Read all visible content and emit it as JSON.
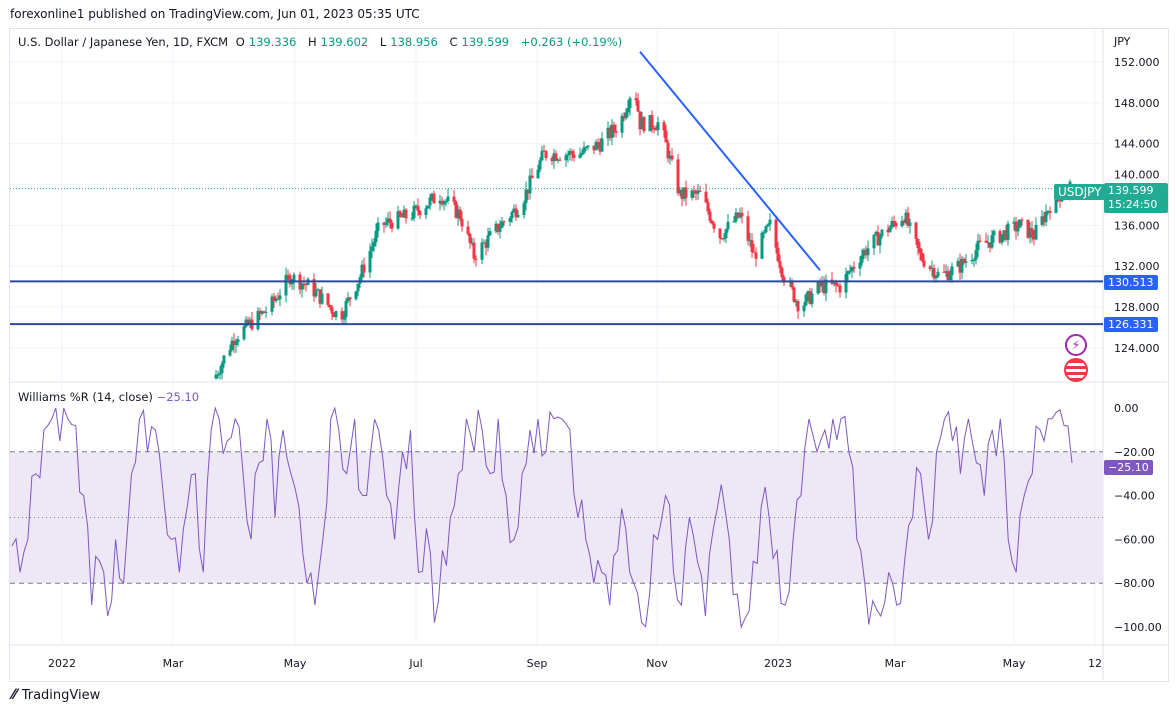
{
  "publisher": "forexonline1 published on TradingView.com, Jun 01, 2023 05:35 UTC",
  "legend": {
    "symbol": "U.S. Dollar / Japanese Yen, 1D, FXCM",
    "o_label": "O",
    "o": "139.336",
    "h_label": "H",
    "h": "139.602",
    "l_label": "L",
    "l": "138.956",
    "c_label": "C",
    "c": "139.599",
    "change": "+0.263 (+0.19%)"
  },
  "currency": "JPY",
  "price_tag": {
    "symbol": "USDJPY",
    "price": "139.599",
    "countdown": "15:24:50"
  },
  "level_tags": [
    "130.513",
    "126.331"
  ],
  "indicator": {
    "name": "Williams %R (14, close)",
    "value": "−25.10",
    "tag": "−25.10"
  },
  "footer": "TradingView",
  "colors": {
    "up": "#089981",
    "down": "#f23645",
    "line": "#2962ff",
    "wr": "#7e57c2",
    "band": "#ede7f6"
  },
  "chart_data": [
    {
      "type": "candlestick",
      "title": "U.S. Dollar / Japanese Yen, 1D, FXCM",
      "ylabel": "JPY",
      "ylim": [
        120,
        154
      ],
      "y_ticks": [
        "152.000",
        "148.000",
        "144.000",
        "140.000",
        "136.000",
        "132.000",
        "128.000",
        "124.000"
      ],
      "x_ticks": [
        "2022",
        "Mar",
        "May",
        "Jul",
        "Sep",
        "Nov",
        "2023",
        "Mar",
        "May",
        "12"
      ],
      "close_path_day_price": [
        [
          76,
          121
        ],
        [
          86,
          125
        ],
        [
          104,
          128
        ],
        [
          114,
          131
        ],
        [
          124,
          130
        ],
        [
          139,
          127
        ],
        [
          149,
          131
        ],
        [
          159,
          136
        ],
        [
          174,
          137
        ],
        [
          189,
          139
        ],
        [
          199,
          137
        ],
        [
          206,
          133
        ],
        [
          219,
          136
        ],
        [
          229,
          138
        ],
        [
          241,
          143
        ],
        [
          259,
          143
        ],
        [
          269,
          144
        ],
        [
          279,
          146
        ],
        [
          286,
          150
        ],
        [
          289,
          146
        ],
        [
          299,
          146
        ],
        [
          306,
          141
        ],
        [
          309,
          139
        ],
        [
          319,
          139
        ],
        [
          329,
          135
        ],
        [
          339,
          137
        ],
        [
          346,
          133
        ],
        [
          354,
          136
        ],
        [
          361,
          131
        ],
        [
          369,
          128
        ],
        [
          379,
          130
        ],
        [
          389,
          130
        ],
        [
          399,
          133
        ],
        [
          409,
          135
        ],
        [
          421,
          137
        ],
        [
          429,
          133
        ],
        [
          439,
          131
        ],
        [
          449,
          132
        ],
        [
          459,
          134
        ],
        [
          469,
          135
        ],
        [
          479,
          136
        ],
        [
          486,
          135
        ],
        [
          494,
          138
        ],
        [
          504,
          140
        ]
      ],
      "horizontal_lines": [
        130.513,
        126.331
      ],
      "trendline": [
        [
          289,
          153
        ],
        [
          379,
          131.6
        ]
      ]
    },
    {
      "type": "line",
      "title": "Williams %R (14, close)",
      "ylim": [
        -105,
        5
      ],
      "y_ticks": [
        "0.00",
        "−20.00",
        "−40.00",
        "−60.00",
        "−80.00",
        "−100.00"
      ],
      "bands": [
        -20,
        -50,
        -80
      ],
      "values": [
        -63,
        -75,
        -60,
        -30,
        -10,
        -5,
        -15,
        -5,
        -8,
        -40,
        -90,
        -70,
        -95,
        -60,
        -80,
        -30,
        -5,
        -20,
        -10,
        -40,
        -60,
        -75,
        -45,
        -30,
        -75,
        -10,
        -5,
        -15,
        -5,
        -30,
        -60,
        -25,
        -5,
        -50,
        -10,
        -30,
        -45,
        -80,
        -90,
        -60,
        -5,
        -10,
        -30,
        -5,
        -40,
        -20,
        -10,
        -40,
        -60,
        -20,
        -10,
        -75,
        -55,
        -98,
        -65,
        -50,
        -30,
        -5,
        -20,
        -10,
        -30,
        -5,
        -40,
        -60,
        -30,
        -10,
        -5,
        -20,
        -5,
        -5,
        -10,
        -50,
        -60,
        -80,
        -75,
        -90,
        -65,
        -55,
        -80,
        -98,
        -85,
        -60,
        -40,
        -75,
        -90,
        -50,
        -70,
        -95,
        -55,
        -35,
        -60,
        -85,
        -96,
        -70,
        -45,
        -50,
        -65,
        -90,
        -60,
        -40,
        -5,
        -20,
        -10,
        -5,
        -5,
        -20,
        -60,
        -80,
        -88,
        -95,
        -75,
        -90,
        -70,
        -50,
        -30,
        -60,
        -20,
        -5,
        -15,
        -30,
        -5,
        -25,
        -40,
        -10,
        -5,
        -60,
        -75,
        -40,
        -30,
        -10,
        -5,
        -2,
        -8,
        -25.1
      ]
    }
  ]
}
